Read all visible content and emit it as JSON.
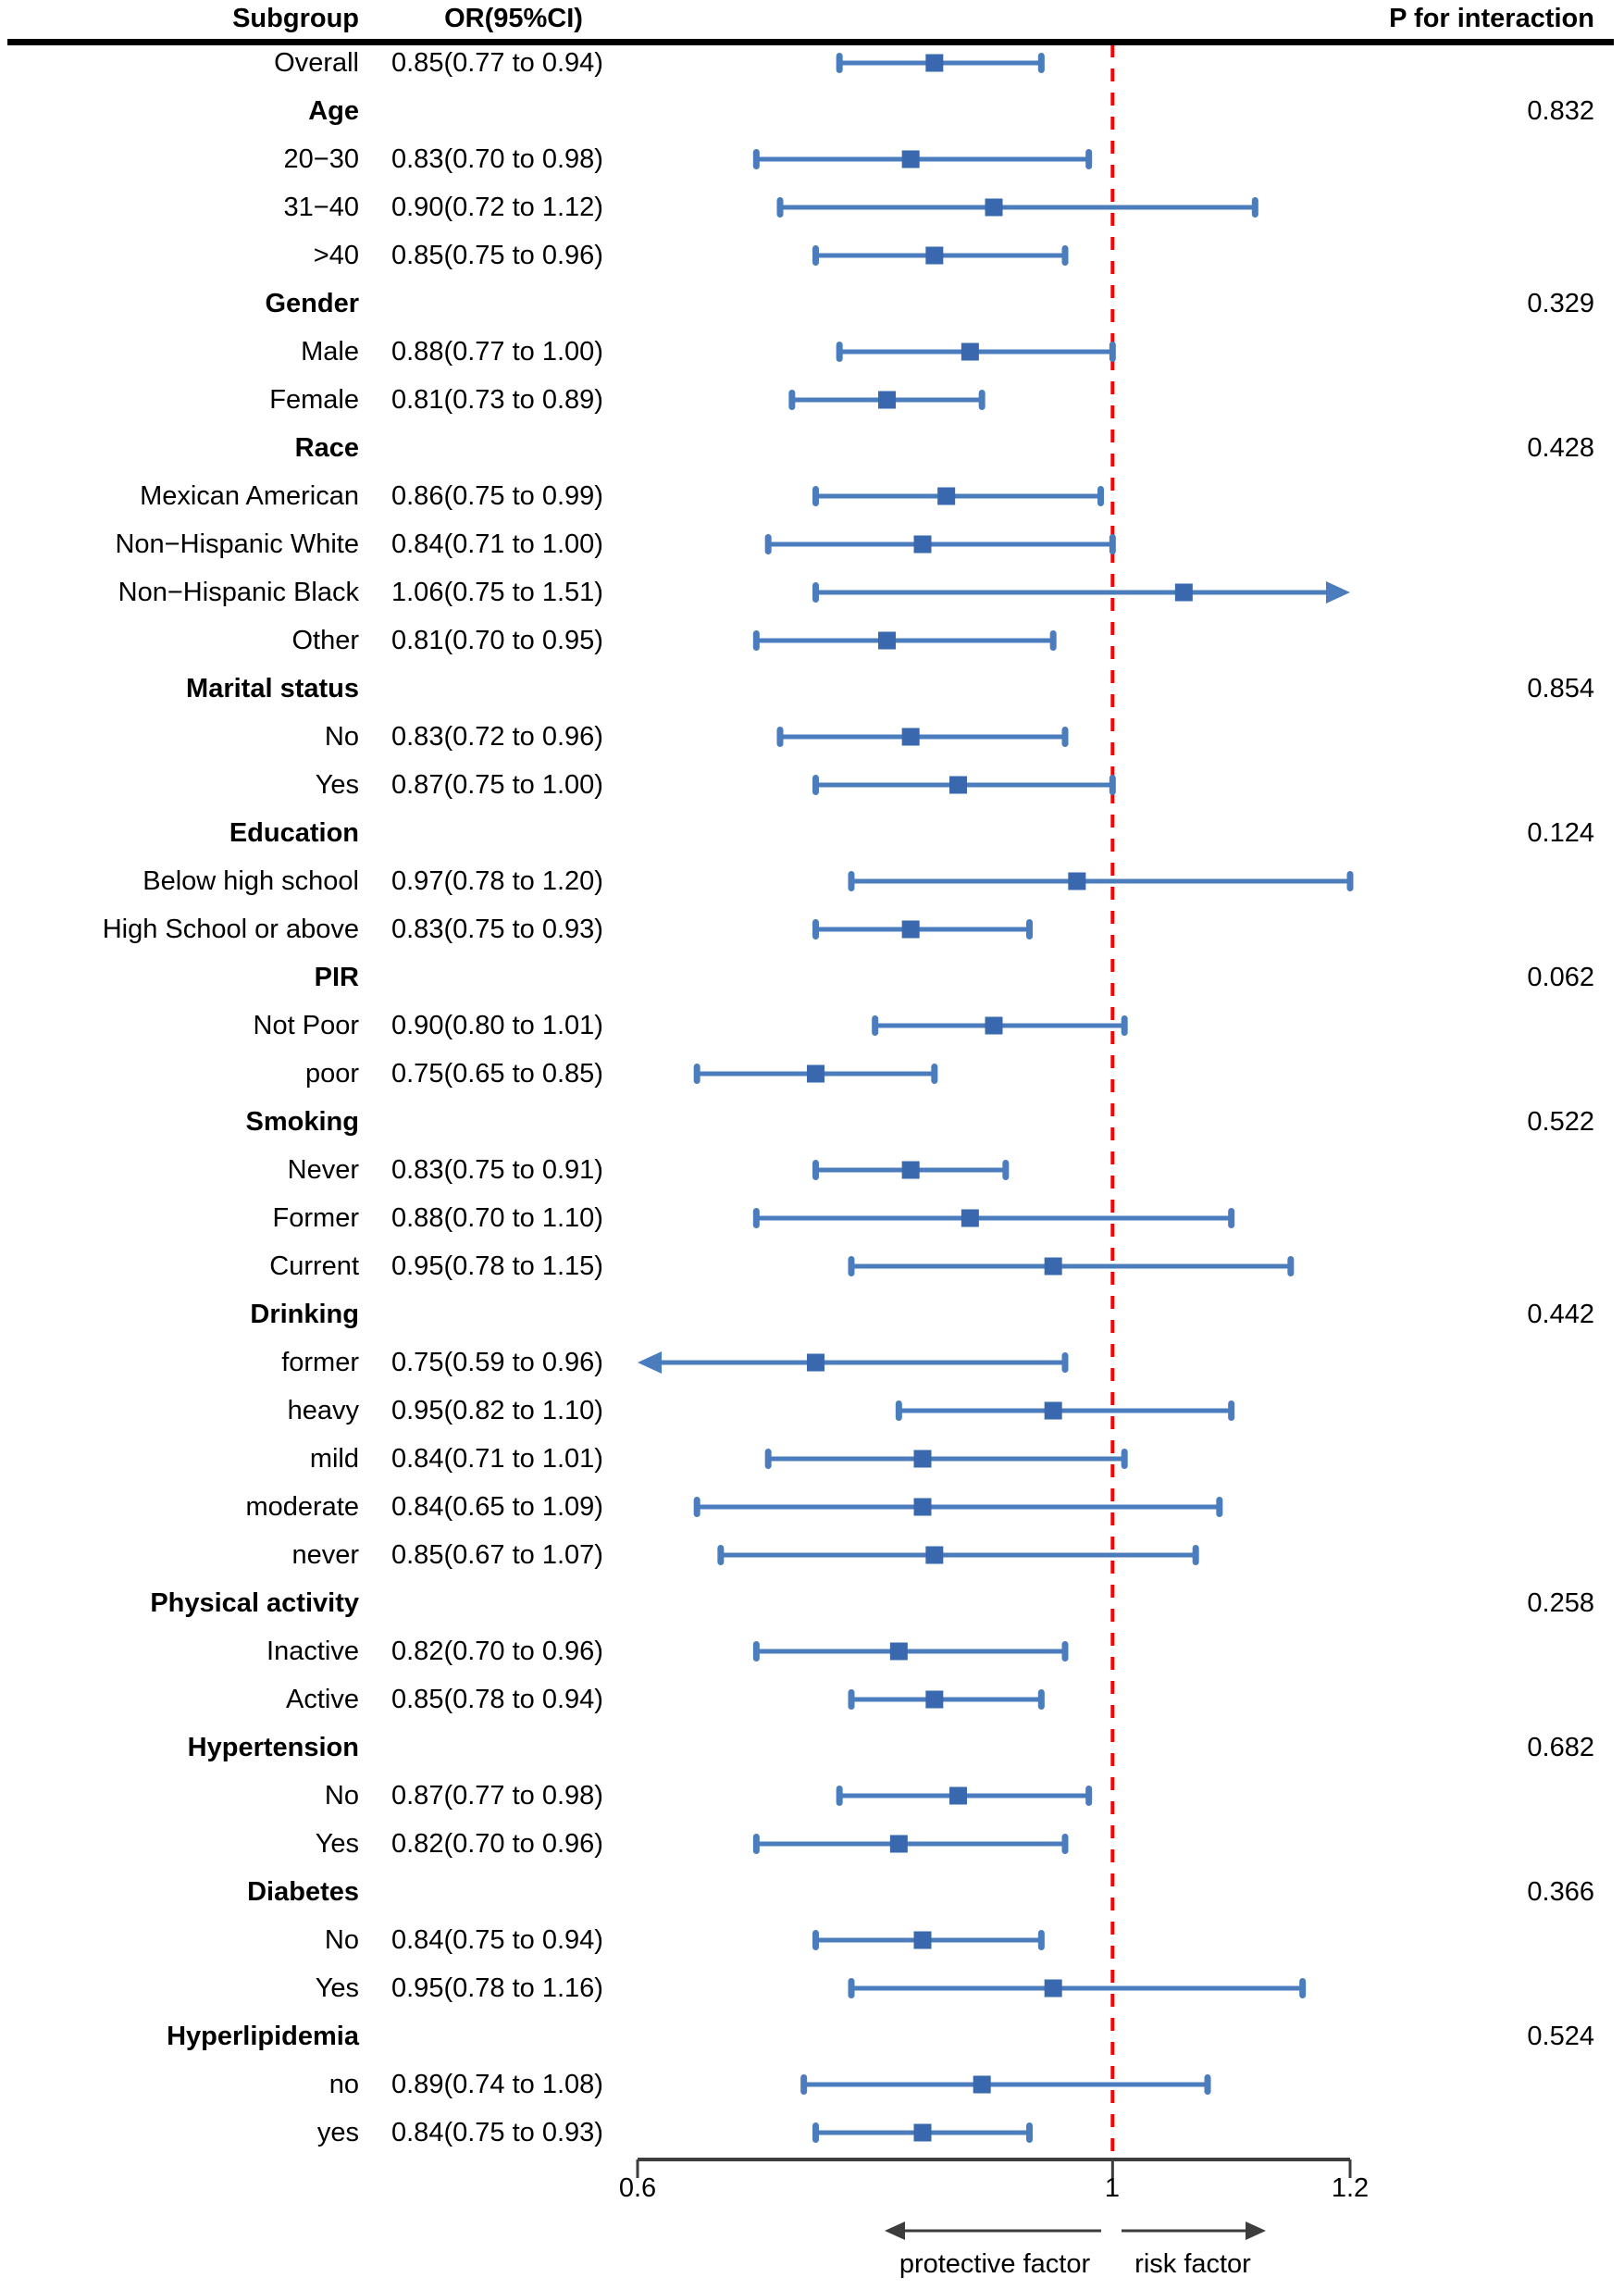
{
  "title_row": {
    "subgroup": "Subgroup",
    "or_ci": "OR(95%CI)",
    "p_interaction": "P for interaction"
  },
  "chart_data": {
    "type": "forest",
    "xlim": [
      0.6,
      1.2
    ],
    "xtick_values": [
      0.6,
      1,
      1.2
    ],
    "xticks": [
      "0.6",
      "1",
      "1.2"
    ],
    "reference_line": 1,
    "grid": false,
    "footer": {
      "left_arrow_label": "protective factor",
      "right_arrow_label": "risk factor"
    },
    "colors": {
      "ci_line": "#4b7cbe",
      "marker": "#3a68ae",
      "reference": "#ff0000",
      "axis": "#3d3d3d",
      "rule": "#000000"
    },
    "rows": [
      {
        "label": "Overall",
        "or_text": "0.85(0.77 to 0.94)",
        "est": 0.85,
        "lo": 0.77,
        "hi": 0.94
      },
      {
        "label": "Age",
        "header": true,
        "p": "0.832"
      },
      {
        "label": "20−30",
        "or_text": "0.83(0.70 to 0.98)",
        "est": 0.83,
        "lo": 0.7,
        "hi": 0.98
      },
      {
        "label": "31−40",
        "or_text": "0.90(0.72 to 1.12)",
        "est": 0.9,
        "lo": 0.72,
        "hi": 1.12
      },
      {
        "label": ">40",
        "or_text": "0.85(0.75 to 0.96)",
        "est": 0.85,
        "lo": 0.75,
        "hi": 0.96
      },
      {
        "label": "Gender",
        "header": true,
        "p": "0.329"
      },
      {
        "label": "Male",
        "or_text": "0.88(0.77 to 1.00)",
        "est": 0.88,
        "lo": 0.77,
        "hi": 1.0
      },
      {
        "label": "Female",
        "or_text": "0.81(0.73 to 0.89)",
        "est": 0.81,
        "lo": 0.73,
        "hi": 0.89
      },
      {
        "label": "Race",
        "header": true,
        "p": "0.428"
      },
      {
        "label": "Mexican American",
        "or_text": "0.86(0.75 to 0.99)",
        "est": 0.86,
        "lo": 0.75,
        "hi": 0.99
      },
      {
        "label": "Non−Hispanic White",
        "or_text": "0.84(0.71 to 1.00)",
        "est": 0.84,
        "lo": 0.71,
        "hi": 1.0
      },
      {
        "label": "Non−Hispanic Black",
        "or_text": "1.06(0.75 to 1.51)",
        "est": 1.06,
        "lo": 0.75,
        "hi": 1.51
      },
      {
        "label": "Other",
        "or_text": "0.81(0.70 to 0.95)",
        "est": 0.81,
        "lo": 0.7,
        "hi": 0.95
      },
      {
        "label": "Marital status",
        "header": true,
        "p": "0.854"
      },
      {
        "label": "No",
        "or_text": "0.83(0.72 to 0.96)",
        "est": 0.83,
        "lo": 0.72,
        "hi": 0.96
      },
      {
        "label": "Yes",
        "or_text": "0.87(0.75 to 1.00)",
        "est": 0.87,
        "lo": 0.75,
        "hi": 1.0
      },
      {
        "label": "Education",
        "header": true,
        "p": "0.124"
      },
      {
        "label": "Below high school",
        "or_text": "0.97(0.78 to 1.20)",
        "est": 0.97,
        "lo": 0.78,
        "hi": 1.2
      },
      {
        "label": "High School or above",
        "or_text": "0.83(0.75 to 0.93)",
        "est": 0.83,
        "lo": 0.75,
        "hi": 0.93
      },
      {
        "label": "PIR",
        "header": true,
        "p": "0.062"
      },
      {
        "label": "Not Poor",
        "or_text": "0.90(0.80 to 1.01)",
        "est": 0.9,
        "lo": 0.8,
        "hi": 1.01
      },
      {
        "label": "poor",
        "or_text": "0.75(0.65 to 0.85)",
        "est": 0.75,
        "lo": 0.65,
        "hi": 0.85
      },
      {
        "label": "Smoking",
        "header": true,
        "p": "0.522"
      },
      {
        "label": "Never",
        "or_text": "0.83(0.75 to 0.91)",
        "est": 0.83,
        "lo": 0.75,
        "hi": 0.91
      },
      {
        "label": "Former",
        "or_text": "0.88(0.70 to 1.10)",
        "est": 0.88,
        "lo": 0.7,
        "hi": 1.1
      },
      {
        "label": "Current",
        "or_text": "0.95(0.78 to 1.15)",
        "est": 0.95,
        "lo": 0.78,
        "hi": 1.15
      },
      {
        "label": "Drinking",
        "header": true,
        "p": "0.442"
      },
      {
        "label": "former",
        "or_text": "0.75(0.59 to 0.96)",
        "est": 0.75,
        "lo": 0.59,
        "hi": 0.96
      },
      {
        "label": "heavy",
        "or_text": "0.95(0.82 to 1.10)",
        "est": 0.95,
        "lo": 0.82,
        "hi": 1.1
      },
      {
        "label": "mild",
        "or_text": "0.84(0.71 to 1.01)",
        "est": 0.84,
        "lo": 0.71,
        "hi": 1.01
      },
      {
        "label": "moderate",
        "or_text": "0.84(0.65 to 1.09)",
        "est": 0.84,
        "lo": 0.65,
        "hi": 1.09
      },
      {
        "label": "never",
        "or_text": "0.85(0.67 to 1.07)",
        "est": 0.85,
        "lo": 0.67,
        "hi": 1.07
      },
      {
        "label": "Physical activity",
        "header": true,
        "p": "0.258"
      },
      {
        "label": "Inactive",
        "or_text": "0.82(0.70 to 0.96)",
        "est": 0.82,
        "lo": 0.7,
        "hi": 0.96
      },
      {
        "label": "Active",
        "or_text": "0.85(0.78 to 0.94)",
        "est": 0.85,
        "lo": 0.78,
        "hi": 0.94
      },
      {
        "label": "Hypertension",
        "header": true,
        "p": "0.682"
      },
      {
        "label": "No",
        "or_text": "0.87(0.77 to 0.98)",
        "est": 0.87,
        "lo": 0.77,
        "hi": 0.98
      },
      {
        "label": "Yes",
        "or_text": "0.82(0.70 to 0.96)",
        "est": 0.82,
        "lo": 0.7,
        "hi": 0.96
      },
      {
        "label": "Diabetes",
        "header": true,
        "p": "0.366"
      },
      {
        "label": "No",
        "or_text": "0.84(0.75 to 0.94)",
        "est": 0.84,
        "lo": 0.75,
        "hi": 0.94
      },
      {
        "label": "Yes",
        "or_text": "0.95(0.78 to 1.16)",
        "est": 0.95,
        "lo": 0.78,
        "hi": 1.16
      },
      {
        "label": "Hyperlipidemia",
        "header": true,
        "p": "0.524"
      },
      {
        "label": "no",
        "or_text": "0.89(0.74 to 1.08)",
        "est": 0.89,
        "lo": 0.74,
        "hi": 1.08
      },
      {
        "label": "yes",
        "or_text": "0.84(0.75 to 0.93)",
        "est": 0.84,
        "lo": 0.75,
        "hi": 0.93
      }
    ]
  }
}
